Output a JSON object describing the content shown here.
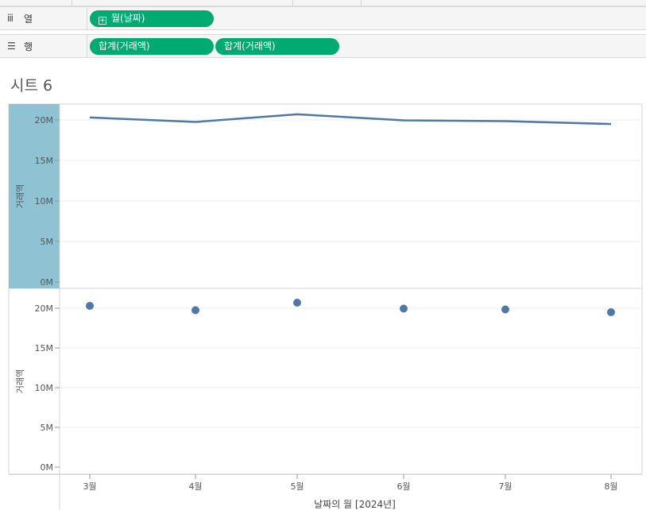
{
  "shelves": {
    "columns": {
      "label": "열",
      "icon": "columns-icon",
      "pills": [
        {
          "label": "월(날짜)",
          "has_plus": true
        }
      ]
    },
    "rows": {
      "label": "행",
      "icon": "rows-icon",
      "pills": [
        {
          "label": "합계(거래액)"
        },
        {
          "label": "합계(거래액)"
        }
      ]
    }
  },
  "sheet_title": "시트 6",
  "colors": {
    "pill": "#00ab72",
    "mark": "#4e79a7",
    "axis_highlight": "#8fc3d4"
  },
  "chart_data": [
    {
      "type": "line",
      "ylabel": "거래액",
      "ylim": [
        0,
        22000000
      ],
      "yticks": [
        0,
        5000000,
        10000000,
        15000000,
        20000000
      ],
      "ytick_labels": [
        "0M",
        "5M",
        "10M",
        "15M",
        "20M"
      ],
      "categories": [
        "3월",
        "4월",
        "5월",
        "6월",
        "7월",
        "8월"
      ],
      "series": [
        {
          "values": [
            20300000,
            19750000,
            20700000,
            19950000,
            19850000,
            19500000
          ]
        }
      ],
      "axis_highlighted": true
    },
    {
      "type": "scatter",
      "ylabel": "거래액",
      "ylim": [
        0,
        22000000
      ],
      "yticks": [
        0,
        5000000,
        10000000,
        15000000,
        20000000
      ],
      "ytick_labels": [
        "0M",
        "5M",
        "10M",
        "15M",
        "20M"
      ],
      "categories": [
        "3월",
        "4월",
        "5월",
        "6월",
        "7월",
        "8월"
      ],
      "series": [
        {
          "values": [
            20300000,
            19750000,
            20700000,
            19950000,
            19850000,
            19500000
          ]
        }
      ]
    }
  ],
  "x_axis": {
    "tick_labels": [
      "3월",
      "4월",
      "5월",
      "6월",
      "7월",
      "8월"
    ],
    "title": "날짜의 월 [2024년]"
  }
}
